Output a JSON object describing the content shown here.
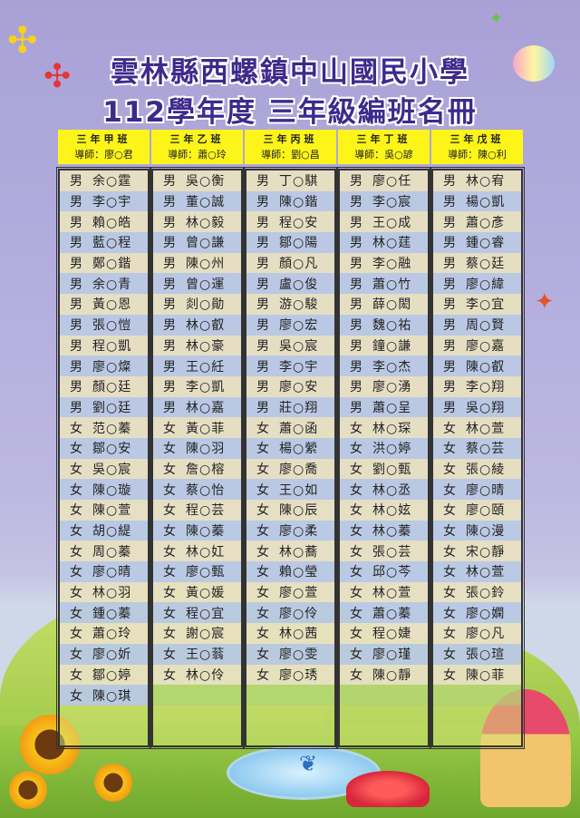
{
  "title": {
    "line1": "雲林縣西螺鎮中山國民小學",
    "line2": "112學年度 三年級編班名冊"
  },
  "colors": {
    "title": "#3d2a8c",
    "header_bg": "#fdf51a",
    "row_beige": "#e8e0c4",
    "row_blue": "#b9c8e8"
  },
  "classes": [
    {
      "name": "三年甲班",
      "teacher": "導師：廖○君",
      "students": [
        {
          "g": "男",
          "n": "余○霆"
        },
        {
          "g": "男",
          "n": "李○宇"
        },
        {
          "g": "男",
          "n": "賴○皓"
        },
        {
          "g": "男",
          "n": "藍○程"
        },
        {
          "g": "男",
          "n": "鄭○鍇"
        },
        {
          "g": "男",
          "n": "余○青"
        },
        {
          "g": "男",
          "n": "黃○恩"
        },
        {
          "g": "男",
          "n": "張○愷"
        },
        {
          "g": "男",
          "n": "程○凱"
        },
        {
          "g": "男",
          "n": "廖○燦"
        },
        {
          "g": "男",
          "n": "顏○廷"
        },
        {
          "g": "男",
          "n": "劉○廷"
        },
        {
          "g": "女",
          "n": "范○蓁"
        },
        {
          "g": "女",
          "n": "鄒○安"
        },
        {
          "g": "女",
          "n": "吳○宸"
        },
        {
          "g": "女",
          "n": "陳○璇"
        },
        {
          "g": "女",
          "n": "陳○萱"
        },
        {
          "g": "女",
          "n": "胡○緹"
        },
        {
          "g": "女",
          "n": "周○蓁"
        },
        {
          "g": "女",
          "n": "廖○晴"
        },
        {
          "g": "女",
          "n": "林○羽"
        },
        {
          "g": "女",
          "n": "鍾○蓁"
        },
        {
          "g": "女",
          "n": "蕭○玲"
        },
        {
          "g": "女",
          "n": "廖○妡"
        },
        {
          "g": "女",
          "n": "鄒○婷"
        },
        {
          "g": "女",
          "n": "陳○琪"
        }
      ]
    },
    {
      "name": "三年乙班",
      "teacher": "導師：蕭○玲",
      "students": [
        {
          "g": "男",
          "n": "吳○衡"
        },
        {
          "g": "男",
          "n": "董○誠"
        },
        {
          "g": "男",
          "n": "林○毅"
        },
        {
          "g": "男",
          "n": "曾○謙"
        },
        {
          "g": "男",
          "n": "陳○州"
        },
        {
          "g": "男",
          "n": "曾○運"
        },
        {
          "g": "男",
          "n": "剡○勛"
        },
        {
          "g": "男",
          "n": "林○叡"
        },
        {
          "g": "男",
          "n": "林○豪"
        },
        {
          "g": "男",
          "n": "王○紝"
        },
        {
          "g": "男",
          "n": "李○凱"
        },
        {
          "g": "男",
          "n": "林○嘉"
        },
        {
          "g": "女",
          "n": "黃○菲"
        },
        {
          "g": "女",
          "n": "陳○羽"
        },
        {
          "g": "女",
          "n": "詹○榕"
        },
        {
          "g": "女",
          "n": "蔡○怡"
        },
        {
          "g": "女",
          "n": "程○芸"
        },
        {
          "g": "女",
          "n": "陳○蓁"
        },
        {
          "g": "女",
          "n": "林○妅"
        },
        {
          "g": "女",
          "n": "廖○甄"
        },
        {
          "g": "女",
          "n": "黃○媛"
        },
        {
          "g": "女",
          "n": "程○宜"
        },
        {
          "g": "女",
          "n": "謝○宸"
        },
        {
          "g": "女",
          "n": "王○蓊"
        },
        {
          "g": "女",
          "n": "林○伶"
        }
      ]
    },
    {
      "name": "三年丙班",
      "teacher": "導師：劉○昌",
      "students": [
        {
          "g": "男",
          "n": "丁○騏"
        },
        {
          "g": "男",
          "n": "陳○鍇"
        },
        {
          "g": "男",
          "n": "程○安"
        },
        {
          "g": "男",
          "n": "鄒○陽"
        },
        {
          "g": "男",
          "n": "顏○凡"
        },
        {
          "g": "男",
          "n": "盧○俊"
        },
        {
          "g": "男",
          "n": "游○駿"
        },
        {
          "g": "男",
          "n": "廖○宏"
        },
        {
          "g": "男",
          "n": "吳○宸"
        },
        {
          "g": "男",
          "n": "李○宇"
        },
        {
          "g": "男",
          "n": "廖○安"
        },
        {
          "g": "男",
          "n": "莊○翔"
        },
        {
          "g": "女",
          "n": "蕭○函"
        },
        {
          "g": "女",
          "n": "楊○縈"
        },
        {
          "g": "女",
          "n": "廖○喬"
        },
        {
          "g": "女",
          "n": "王○如"
        },
        {
          "g": "女",
          "n": "陳○辰"
        },
        {
          "g": "女",
          "n": "廖○柔"
        },
        {
          "g": "女",
          "n": "林○蕎"
        },
        {
          "g": "女",
          "n": "賴○瑩"
        },
        {
          "g": "女",
          "n": "廖○萱"
        },
        {
          "g": "女",
          "n": "廖○伶"
        },
        {
          "g": "女",
          "n": "林○茜"
        },
        {
          "g": "女",
          "n": "廖○雯"
        },
        {
          "g": "女",
          "n": "廖○琇"
        }
      ]
    },
    {
      "name": "三年丁班",
      "teacher": "導師：吳○諺",
      "students": [
        {
          "g": "男",
          "n": "廖○任"
        },
        {
          "g": "男",
          "n": "李○宸"
        },
        {
          "g": "男",
          "n": "王○成"
        },
        {
          "g": "男",
          "n": "林○莛"
        },
        {
          "g": "男",
          "n": "李○融"
        },
        {
          "g": "男",
          "n": "蕭○竹"
        },
        {
          "g": "男",
          "n": "薛○閎"
        },
        {
          "g": "男",
          "n": "魏○祐"
        },
        {
          "g": "男",
          "n": "鐘○謙"
        },
        {
          "g": "男",
          "n": "李○杰"
        },
        {
          "g": "男",
          "n": "廖○湧"
        },
        {
          "g": "男",
          "n": "蕭○呈"
        },
        {
          "g": "女",
          "n": "林○琛"
        },
        {
          "g": "女",
          "n": "洪○婷"
        },
        {
          "g": "女",
          "n": "劉○甄"
        },
        {
          "g": "女",
          "n": "林○丞"
        },
        {
          "g": "女",
          "n": "林○妶"
        },
        {
          "g": "女",
          "n": "林○蓁"
        },
        {
          "g": "女",
          "n": "張○芸"
        },
        {
          "g": "女",
          "n": "邱○芩"
        },
        {
          "g": "女",
          "n": "林○萱"
        },
        {
          "g": "女",
          "n": "蕭○蓁"
        },
        {
          "g": "女",
          "n": "程○婕"
        },
        {
          "g": "女",
          "n": "廖○瑾"
        },
        {
          "g": "女",
          "n": "陳○靜"
        }
      ]
    },
    {
      "name": "三年戊班",
      "teacher": "導師：陳○利",
      "students": [
        {
          "g": "男",
          "n": "林○宥"
        },
        {
          "g": "男",
          "n": "楊○凱"
        },
        {
          "g": "男",
          "n": "蕭○彥"
        },
        {
          "g": "男",
          "n": "鍾○睿"
        },
        {
          "g": "男",
          "n": "蔡○廷"
        },
        {
          "g": "男",
          "n": "廖○緯"
        },
        {
          "g": "男",
          "n": "李○宜"
        },
        {
          "g": "男",
          "n": "周○賢"
        },
        {
          "g": "男",
          "n": "廖○嘉"
        },
        {
          "g": "男",
          "n": "陳○叡"
        },
        {
          "g": "男",
          "n": "李○翔"
        },
        {
          "g": "男",
          "n": "吳○翔"
        },
        {
          "g": "女",
          "n": "林○萱"
        },
        {
          "g": "女",
          "n": "蔡○芸"
        },
        {
          "g": "女",
          "n": "張○綾"
        },
        {
          "g": "女",
          "n": "廖○晴"
        },
        {
          "g": "女",
          "n": "廖○頤"
        },
        {
          "g": "女",
          "n": "陳○漫"
        },
        {
          "g": "女",
          "n": "宋○靜"
        },
        {
          "g": "女",
          "n": "林○萱"
        },
        {
          "g": "女",
          "n": "張○鈴"
        },
        {
          "g": "女",
          "n": "廖○嫻"
        },
        {
          "g": "女",
          "n": "廖○凡"
        },
        {
          "g": "女",
          "n": "張○瑄"
        },
        {
          "g": "女",
          "n": "陳○菲"
        }
      ]
    }
  ]
}
